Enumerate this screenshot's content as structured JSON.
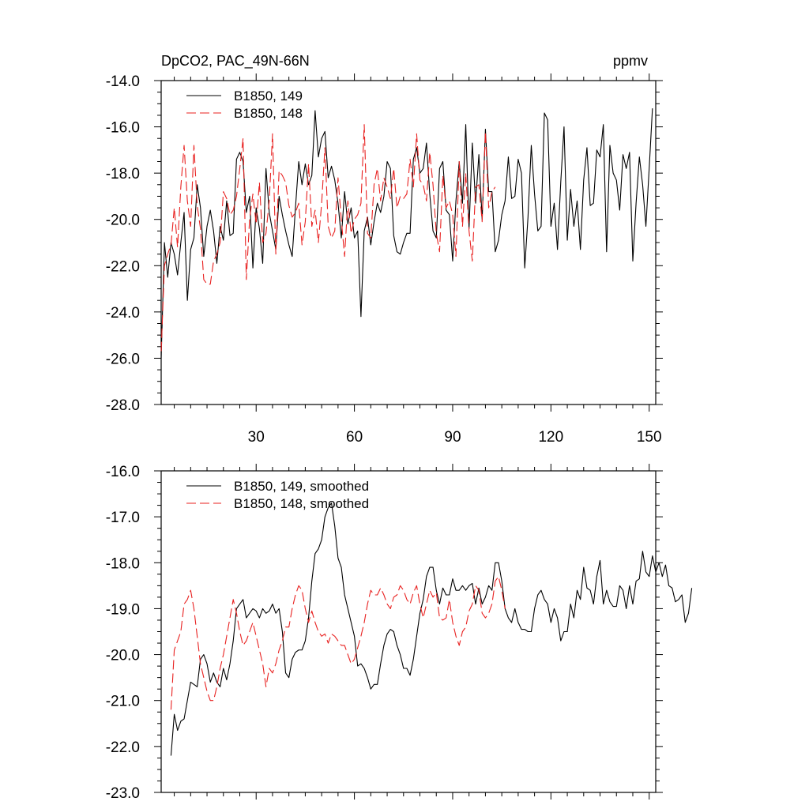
{
  "header": {
    "title": "DpCO2, PAC_49N-66N",
    "units": "ppmv"
  },
  "chart_data": [
    {
      "type": "line",
      "xlim": [
        1,
        152
      ],
      "ylim": [
        -28,
        -14
      ],
      "xticks": [
        30,
        60,
        90,
        120,
        150
      ],
      "yticks": [
        -28,
        -26,
        -24,
        -22,
        -20,
        -18,
        -16,
        -14
      ],
      "ytick_labels": [
        "-28.0",
        "-26.0",
        "-24.0",
        "-22.0",
        "-20.0",
        "-18.0",
        "-16.0",
        "-14.0"
      ],
      "xtick_labels": [
        "30",
        "60",
        "90",
        "120",
        "150"
      ],
      "legend": "top-left",
      "series": [
        {
          "name": "B1850, 149",
          "color": "#000000",
          "dash": "solid",
          "x_start": 1,
          "values": [
            -26.0,
            -21.0,
            -22.5,
            -21.0,
            -21.5,
            -22.4,
            -21.0,
            -19.7,
            -23.5,
            -21.3,
            -20.8,
            -18.5,
            -19.5,
            -21.6,
            -20.3,
            -19.6,
            -20.5,
            -21.9,
            -20.3,
            -20.9,
            -19.2,
            -20.7,
            -20.6,
            -17.4,
            -17.1,
            -17.5,
            -19.7,
            -19.0,
            -22.1,
            -19.5,
            -20.4,
            -21.9,
            -17.8,
            -19.7,
            -20.5,
            -21.3,
            -19.0,
            -19.8,
            -20.5,
            -21.1,
            -21.6,
            -19.5,
            -17.5,
            -18.5,
            -17.6,
            -18.5,
            -18.1,
            -15.3,
            -17.3,
            -16.5,
            -16.2,
            -18.2,
            -17.7,
            -18.3,
            -19.3,
            -20.8,
            -18.8,
            -20.2,
            -19.5,
            -20.8,
            -20.5,
            -24.2,
            -20.5,
            -19.9,
            -21.1,
            -20.1,
            -19.3,
            -19.7,
            -19.0,
            -17.5,
            -17.8,
            -20.7,
            -21.4,
            -21.5,
            -21.0,
            -20.6,
            -20.6,
            -17.4,
            -16.9,
            -18.0,
            -17.8,
            -16.7,
            -18.9,
            -20.5,
            -20.8,
            -17.8,
            -17.5,
            -19.6,
            -19.8,
            -21.8,
            -19.2,
            -17.5,
            -19.3,
            -15.9,
            -20.4,
            -16.7,
            -19.3,
            -17.2,
            -20.0,
            -16.1,
            -18.8,
            -18.8,
            -21.4,
            -20.9,
            -19.8,
            -19.2,
            -17.3,
            -19.1,
            -19.0,
            -17.4,
            -18.0,
            -22.1,
            -19.9,
            -16.8,
            -18.9,
            -20.5,
            -20.3,
            -15.4,
            -15.7,
            -20.3,
            -19.3,
            -21.3,
            -18.4,
            -16.0,
            -20.9,
            -18.7,
            -20.3,
            -19.2,
            -21.3,
            -18.3,
            -16.9,
            -19.4,
            -19.3,
            -17.0,
            -17.3,
            -15.9,
            -21.4,
            -16.8,
            -18.0,
            -18.3,
            -19.6,
            -17.2,
            -17.8,
            -17.1,
            -21.8,
            -19.3,
            -17.3,
            -18.5,
            -20.3,
            -17.8,
            -15.2
          ]
        },
        {
          "name": "B1850, 148",
          "color": "#e8201f",
          "dash": "dashed",
          "x_start": 1,
          "values": [
            -25.7,
            -22.0,
            -21.5,
            -21.1,
            -19.5,
            -21.2,
            -18.6,
            -16.8,
            -19.2,
            -20.3,
            -16.8,
            -19.4,
            -20.4,
            -22.6,
            -22.8,
            -22.8,
            -21.8,
            -21.5,
            -21.0,
            -18.8,
            -19.1,
            -19.8,
            -19.6,
            -19.0,
            -17.8,
            -16.5,
            -22.6,
            -20.0,
            -18.9,
            -20.2,
            -18.4,
            -21.0,
            -20.6,
            -19.2,
            -16.3,
            -21.5,
            -17.9,
            -18.1,
            -18.4,
            -19.4,
            -19.9,
            -19.7,
            -19.3,
            -21.1,
            -20.1,
            -17.6,
            -20.3,
            -19.6,
            -21.0,
            -19.3,
            -16.9,
            -20.3,
            -20.8,
            -20.5,
            -18.2,
            -20.0,
            -21.6,
            -19.2,
            -20.6,
            -20.0,
            -19.8,
            -19.3,
            -15.9,
            -20.6,
            -20.8,
            -18.5,
            -17.8,
            -19.2,
            -18.2,
            -18.6,
            -19.1,
            -17.8,
            -19.5,
            -19.0,
            -19.1,
            -18.9,
            -17.4,
            -18.6,
            -16.3,
            -18.3,
            -18.5,
            -19.2,
            -17.1,
            -18.5,
            -20.6,
            -21.4,
            -18.1,
            -19.5,
            -19.2,
            -19.8,
            -21.6,
            -17.5,
            -20.3,
            -18.0,
            -20.5,
            -21.8,
            -18.6,
            -18.5,
            -20.1,
            -16.2,
            -19.5,
            -18.8,
            -18.6
          ]
        }
      ]
    },
    {
      "type": "line",
      "xlim": [
        1,
        152
      ],
      "ylim": [
        -23,
        -16
      ],
      "xticks": [
        30,
        60,
        90,
        120,
        150
      ],
      "yticks": [
        -23,
        -22,
        -21,
        -20,
        -19,
        -18,
        -17,
        -16
      ],
      "ytick_labels": [
        "-23.0",
        "-22.0",
        "-21.0",
        "-20.0",
        "-19.0",
        "-18.0",
        "-17.0",
        "-16.0"
      ],
      "xtick_labels": [],
      "legend": "top-left",
      "series": [
        {
          "name": "B1850, 149, smoothed",
          "color": "#000000",
          "dash": "solid",
          "x_start": 4,
          "values": [
            -22.2,
            -21.3,
            -21.65,
            -21.45,
            -21.4,
            -21.0,
            -20.6,
            -20.65,
            -20.7,
            -20.1,
            -20.0,
            -20.2,
            -20.6,
            -20.4,
            -20.6,
            -20.7,
            -20.3,
            -20.55,
            -20.2,
            -19.7,
            -19.0,
            -18.9,
            -18.8,
            -19.2,
            -19.1,
            -19.0,
            -19.05,
            -19.2,
            -19.0,
            -19.1,
            -19.05,
            -18.9,
            -19.1,
            -19.0,
            -19.5,
            -20.4,
            -20.5,
            -20.1,
            -19.95,
            -19.9,
            -19.9,
            -19.7,
            -19.2,
            -18.4,
            -17.8,
            -17.7,
            -17.5,
            -17.0,
            -16.8,
            -16.7,
            -17.2,
            -17.9,
            -18.1,
            -18.7,
            -19.0,
            -19.3,
            -19.6,
            -20.25,
            -20.2,
            -20.3,
            -20.5,
            -20.75,
            -20.65,
            -20.65,
            -20.2,
            -19.8,
            -19.55,
            -19.45,
            -19.5,
            -19.8,
            -20.0,
            -20.3,
            -20.3,
            -20.45,
            -20.1,
            -19.6,
            -19.1,
            -18.8,
            -18.3,
            -18.1,
            -18.1,
            -18.6,
            -18.9,
            -18.55,
            -18.7,
            -18.7,
            -18.35,
            -18.6,
            -18.6,
            -18.5,
            -18.6,
            -18.5,
            -18.45,
            -18.9,
            -18.55,
            -18.9,
            -18.75,
            -18.5,
            -18.6,
            -18.0,
            -18.0,
            -18.4,
            -19.0,
            -19.2,
            -19.3,
            -19.0,
            -19.3,
            -19.45,
            -19.45,
            -19.5,
            -19.5,
            -19.0,
            -18.7,
            -18.6,
            -18.8,
            -18.9,
            -19.3,
            -19.0,
            -19.2,
            -19.7,
            -19.5,
            -19.5,
            -18.9,
            -19.2,
            -18.6,
            -18.8,
            -18.1,
            -18.55,
            -18.6,
            -18.9,
            -18.3,
            -17.95,
            -18.9,
            -18.6,
            -18.85,
            -18.95,
            -18.95,
            -18.5,
            -18.6,
            -19.0,
            -18.5,
            -18.9,
            -18.4,
            -18.35,
            -17.75,
            -18.2,
            -18.3,
            -17.85,
            -18.2,
            -18.0,
            -18.3,
            -18.05,
            -18.5,
            -18.55,
            -18.85,
            -18.8,
            -18.7,
            -19.3,
            -19.1,
            -18.55
          ]
        },
        {
          "name": "B1850, 148, smoothed",
          "color": "#e8201f",
          "dash": "dashed",
          "x_start": 4,
          "values": [
            -21.2,
            -19.9,
            -19.7,
            -19.5,
            -18.9,
            -18.8,
            -18.6,
            -19.0,
            -19.6,
            -20.2,
            -20.5,
            -20.8,
            -21.0,
            -21.0,
            -20.7,
            -20.3,
            -20.0,
            -19.6,
            -19.2,
            -18.8,
            -19.1,
            -19.5,
            -19.8,
            -19.7,
            -19.5,
            -19.3,
            -19.6,
            -19.9,
            -20.2,
            -20.7,
            -20.3,
            -20.4,
            -20.2,
            -19.9,
            -19.7,
            -19.4,
            -19.4,
            -19.0,
            -18.7,
            -18.5,
            -18.6,
            -19.0,
            -19.3,
            -19.05,
            -19.3,
            -19.5,
            -19.6,
            -19.55,
            -19.75,
            -19.55,
            -19.6,
            -19.7,
            -19.8,
            -19.8,
            -20.0,
            -20.2,
            -20.1,
            -19.85,
            -19.6,
            -19.3,
            -18.9,
            -18.6,
            -18.7,
            -18.7,
            -18.55,
            -18.7,
            -18.9,
            -19.0,
            -18.75,
            -18.7,
            -18.5,
            -18.6,
            -18.8,
            -18.9,
            -18.65,
            -18.5,
            -18.9,
            -19.2,
            -18.9,
            -18.6,
            -18.75,
            -18.65,
            -19.2,
            -19.25,
            -19.2,
            -18.8,
            -19.3,
            -19.6,
            -19.8,
            -19.5,
            -19.4,
            -19.05,
            -18.9,
            -18.5,
            -18.6,
            -19.1,
            -19.2,
            -19.1,
            -18.9,
            -18.4,
            -18.3,
            -18.6,
            -19.0
          ]
        }
      ]
    }
  ]
}
